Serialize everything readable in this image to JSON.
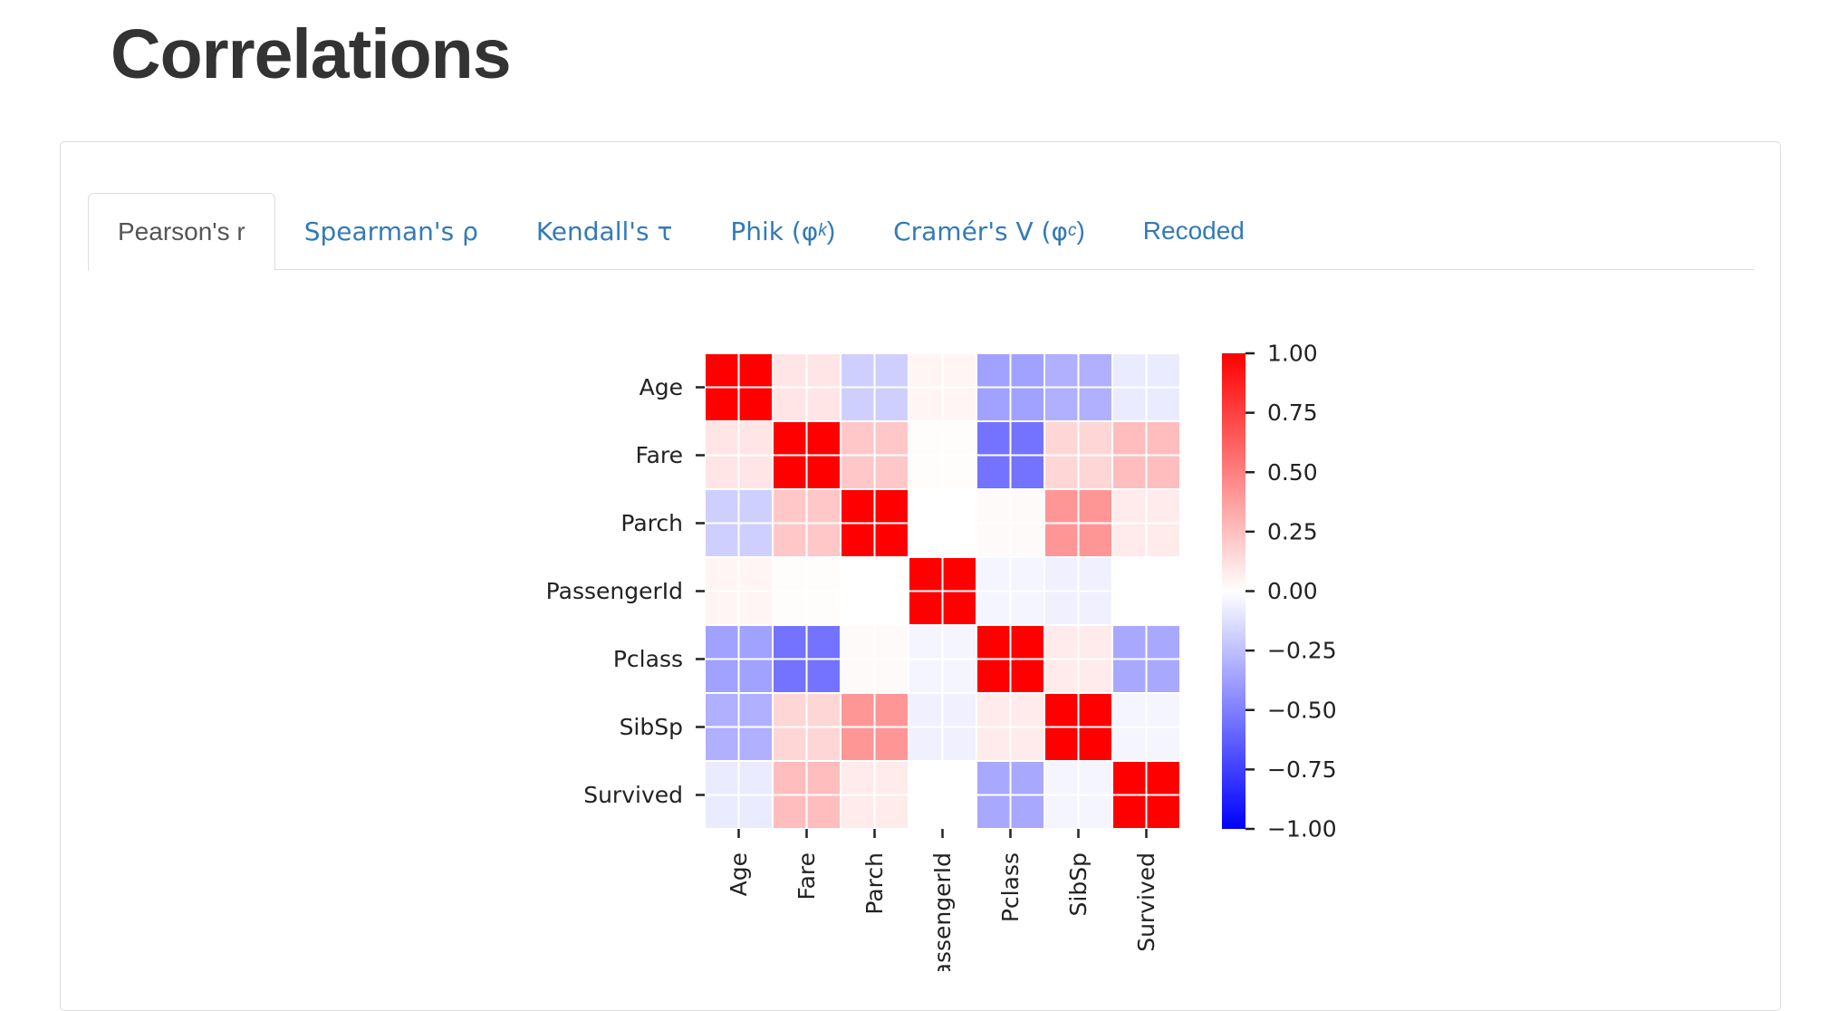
{
  "page": {
    "title": "Correlations"
  },
  "tabs": [
    {
      "label": "Pearson's r",
      "active": true
    },
    {
      "label": "Spearman's ρ",
      "active": false
    },
    {
      "label": "Kendall's τ",
      "active": false
    },
    {
      "label_main": "Phik (φ",
      "label_sub": "k",
      "label_end": ")",
      "active": false
    },
    {
      "label_main": "Cramér's V (φ",
      "label_sub": "c",
      "label_end": ")",
      "active": false
    },
    {
      "label": "Recoded",
      "active": false
    }
  ],
  "chart_data": {
    "type": "heatmap",
    "title": "",
    "rows": [
      "Age",
      "Fare",
      "Parch",
      "PassengerId",
      "Pclass",
      "SibSp",
      "Survived"
    ],
    "columns": [
      "Age",
      "Fare",
      "Parch",
      "PassengerId",
      "Pclass",
      "SibSp",
      "Survived"
    ],
    "values": [
      [
        1.0,
        0.1,
        -0.19,
        0.04,
        -0.37,
        -0.31,
        -0.08
      ],
      [
        0.1,
        1.0,
        0.22,
        0.01,
        -0.55,
        0.16,
        0.26
      ],
      [
        -0.19,
        0.22,
        1.0,
        0.0,
        0.02,
        0.41,
        0.08
      ],
      [
        0.04,
        0.01,
        0.0,
        1.0,
        -0.04,
        -0.06,
        0.0
      ],
      [
        -0.37,
        -0.55,
        0.02,
        -0.04,
        1.0,
        0.08,
        -0.34
      ],
      [
        -0.31,
        0.16,
        0.41,
        -0.06,
        0.08,
        1.0,
        -0.04
      ],
      [
        -0.08,
        0.26,
        0.08,
        0.0,
        -0.34,
        -0.04,
        1.0
      ]
    ],
    "colormap": "bwr",
    "vmin": -1.0,
    "vmax": 1.0,
    "colorbar_ticks": [
      "1.00",
      "0.75",
      "0.50",
      "0.25",
      "0.00",
      "−0.25",
      "−0.50",
      "−0.75",
      "−1.00"
    ],
    "colors": {
      "low": "#0000ff",
      "mid": "#ffffff",
      "high": "#ff0000"
    }
  }
}
